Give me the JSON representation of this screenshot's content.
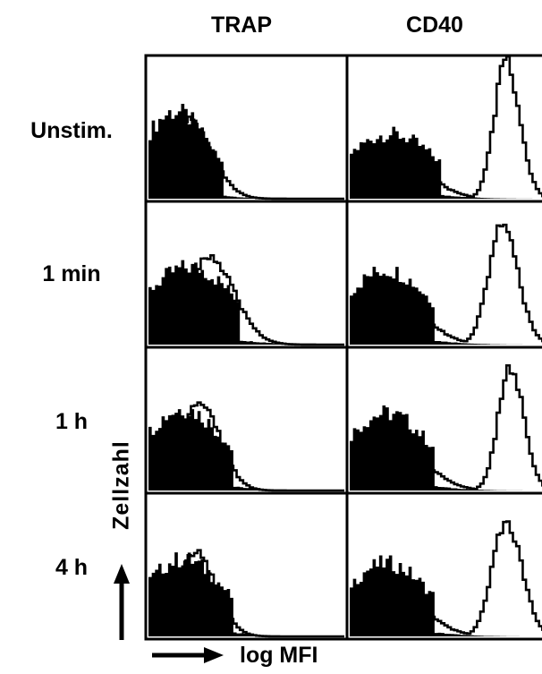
{
  "chart_data": {
    "type": "histogram-grid",
    "columns": [
      "TRAP",
      "CD40"
    ],
    "rows": [
      "Unstim.",
      "1 min",
      "1 h",
      "4 h"
    ],
    "ylabel": "Zellzahl",
    "xlabel": "log MFI",
    "colors": {
      "filled": "#000000",
      "outline": "#000000",
      "background": "#ffffff"
    },
    "panels": [
      [
        {
          "isotype": {
            "peak": 0.13,
            "height": 0.62
          },
          "stain": {
            "peak": 0.2,
            "width": 0.1,
            "height": 0.56
          }
        },
        {
          "isotype": {
            "peak": 0.2,
            "height": 0.46
          },
          "stain": {
            "peak": 0.79,
            "width": 0.06,
            "height": 0.98
          }
        }
      ],
      [
        {
          "isotype": {
            "peak": 0.2,
            "height": 0.55
          },
          "stain": {
            "peak": 0.3,
            "width": 0.11,
            "height": 0.64
          }
        },
        {
          "isotype": {
            "peak": 0.18,
            "height": 0.53
          },
          "stain": {
            "peak": 0.77,
            "width": 0.07,
            "height": 0.85
          }
        }
      ],
      [
        {
          "isotype": {
            "peak": 0.17,
            "height": 0.58
          },
          "stain": {
            "peak": 0.25,
            "width": 0.09,
            "height": 0.66
          }
        },
        {
          "isotype": {
            "peak": 0.18,
            "height": 0.55
          },
          "stain": {
            "peak": 0.81,
            "width": 0.06,
            "height": 0.89
          }
        }
      ],
      [
        {
          "isotype": {
            "peak": 0.17,
            "height": 0.55
          },
          "stain": {
            "peak": 0.23,
            "width": 0.09,
            "height": 0.6
          }
        },
        {
          "isotype": {
            "peak": 0.18,
            "height": 0.52
          },
          "stain": {
            "peak": 0.79,
            "width": 0.07,
            "height": 0.82
          }
        }
      ]
    ]
  }
}
